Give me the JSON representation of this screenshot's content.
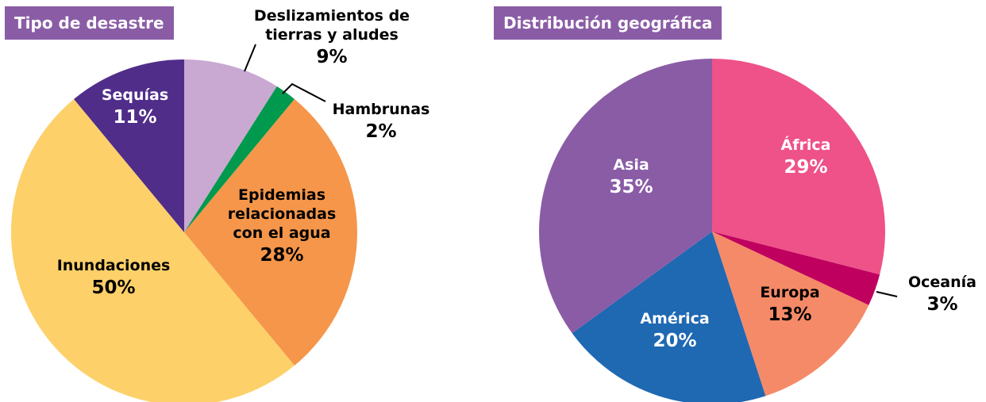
{
  "chart_data": [
    {
      "type": "pie",
      "title": "Tipo de desastre",
      "categories": [
        "Deslizamientos de tierras y aludes",
        "Hambrunas",
        "Epidemias relacionadas con el agua",
        "Inundaciones",
        "Sequías"
      ],
      "values": [
        9,
        2,
        28,
        50,
        11
      ],
      "value_labels": [
        "9%",
        "2%",
        "28%",
        "50%",
        "11%"
      ],
      "colors": [
        "#c9a9d1",
        "#00994d",
        "#f5964a",
        "#fdd06a",
        "#512d8a"
      ]
    },
    {
      "type": "pie",
      "title": "Distribución geográfica",
      "categories": [
        "África",
        "Oceanía",
        "Europa",
        "América",
        "Asia"
      ],
      "values": [
        29,
        3,
        13,
        20,
        35
      ],
      "value_labels": [
        "29%",
        "3%",
        "13%",
        "20%",
        "35%"
      ],
      "colors": [
        "#ee5289",
        "#c0005e",
        "#f58a68",
        "#1f68b2",
        "#8a5ca6"
      ]
    }
  ]
}
